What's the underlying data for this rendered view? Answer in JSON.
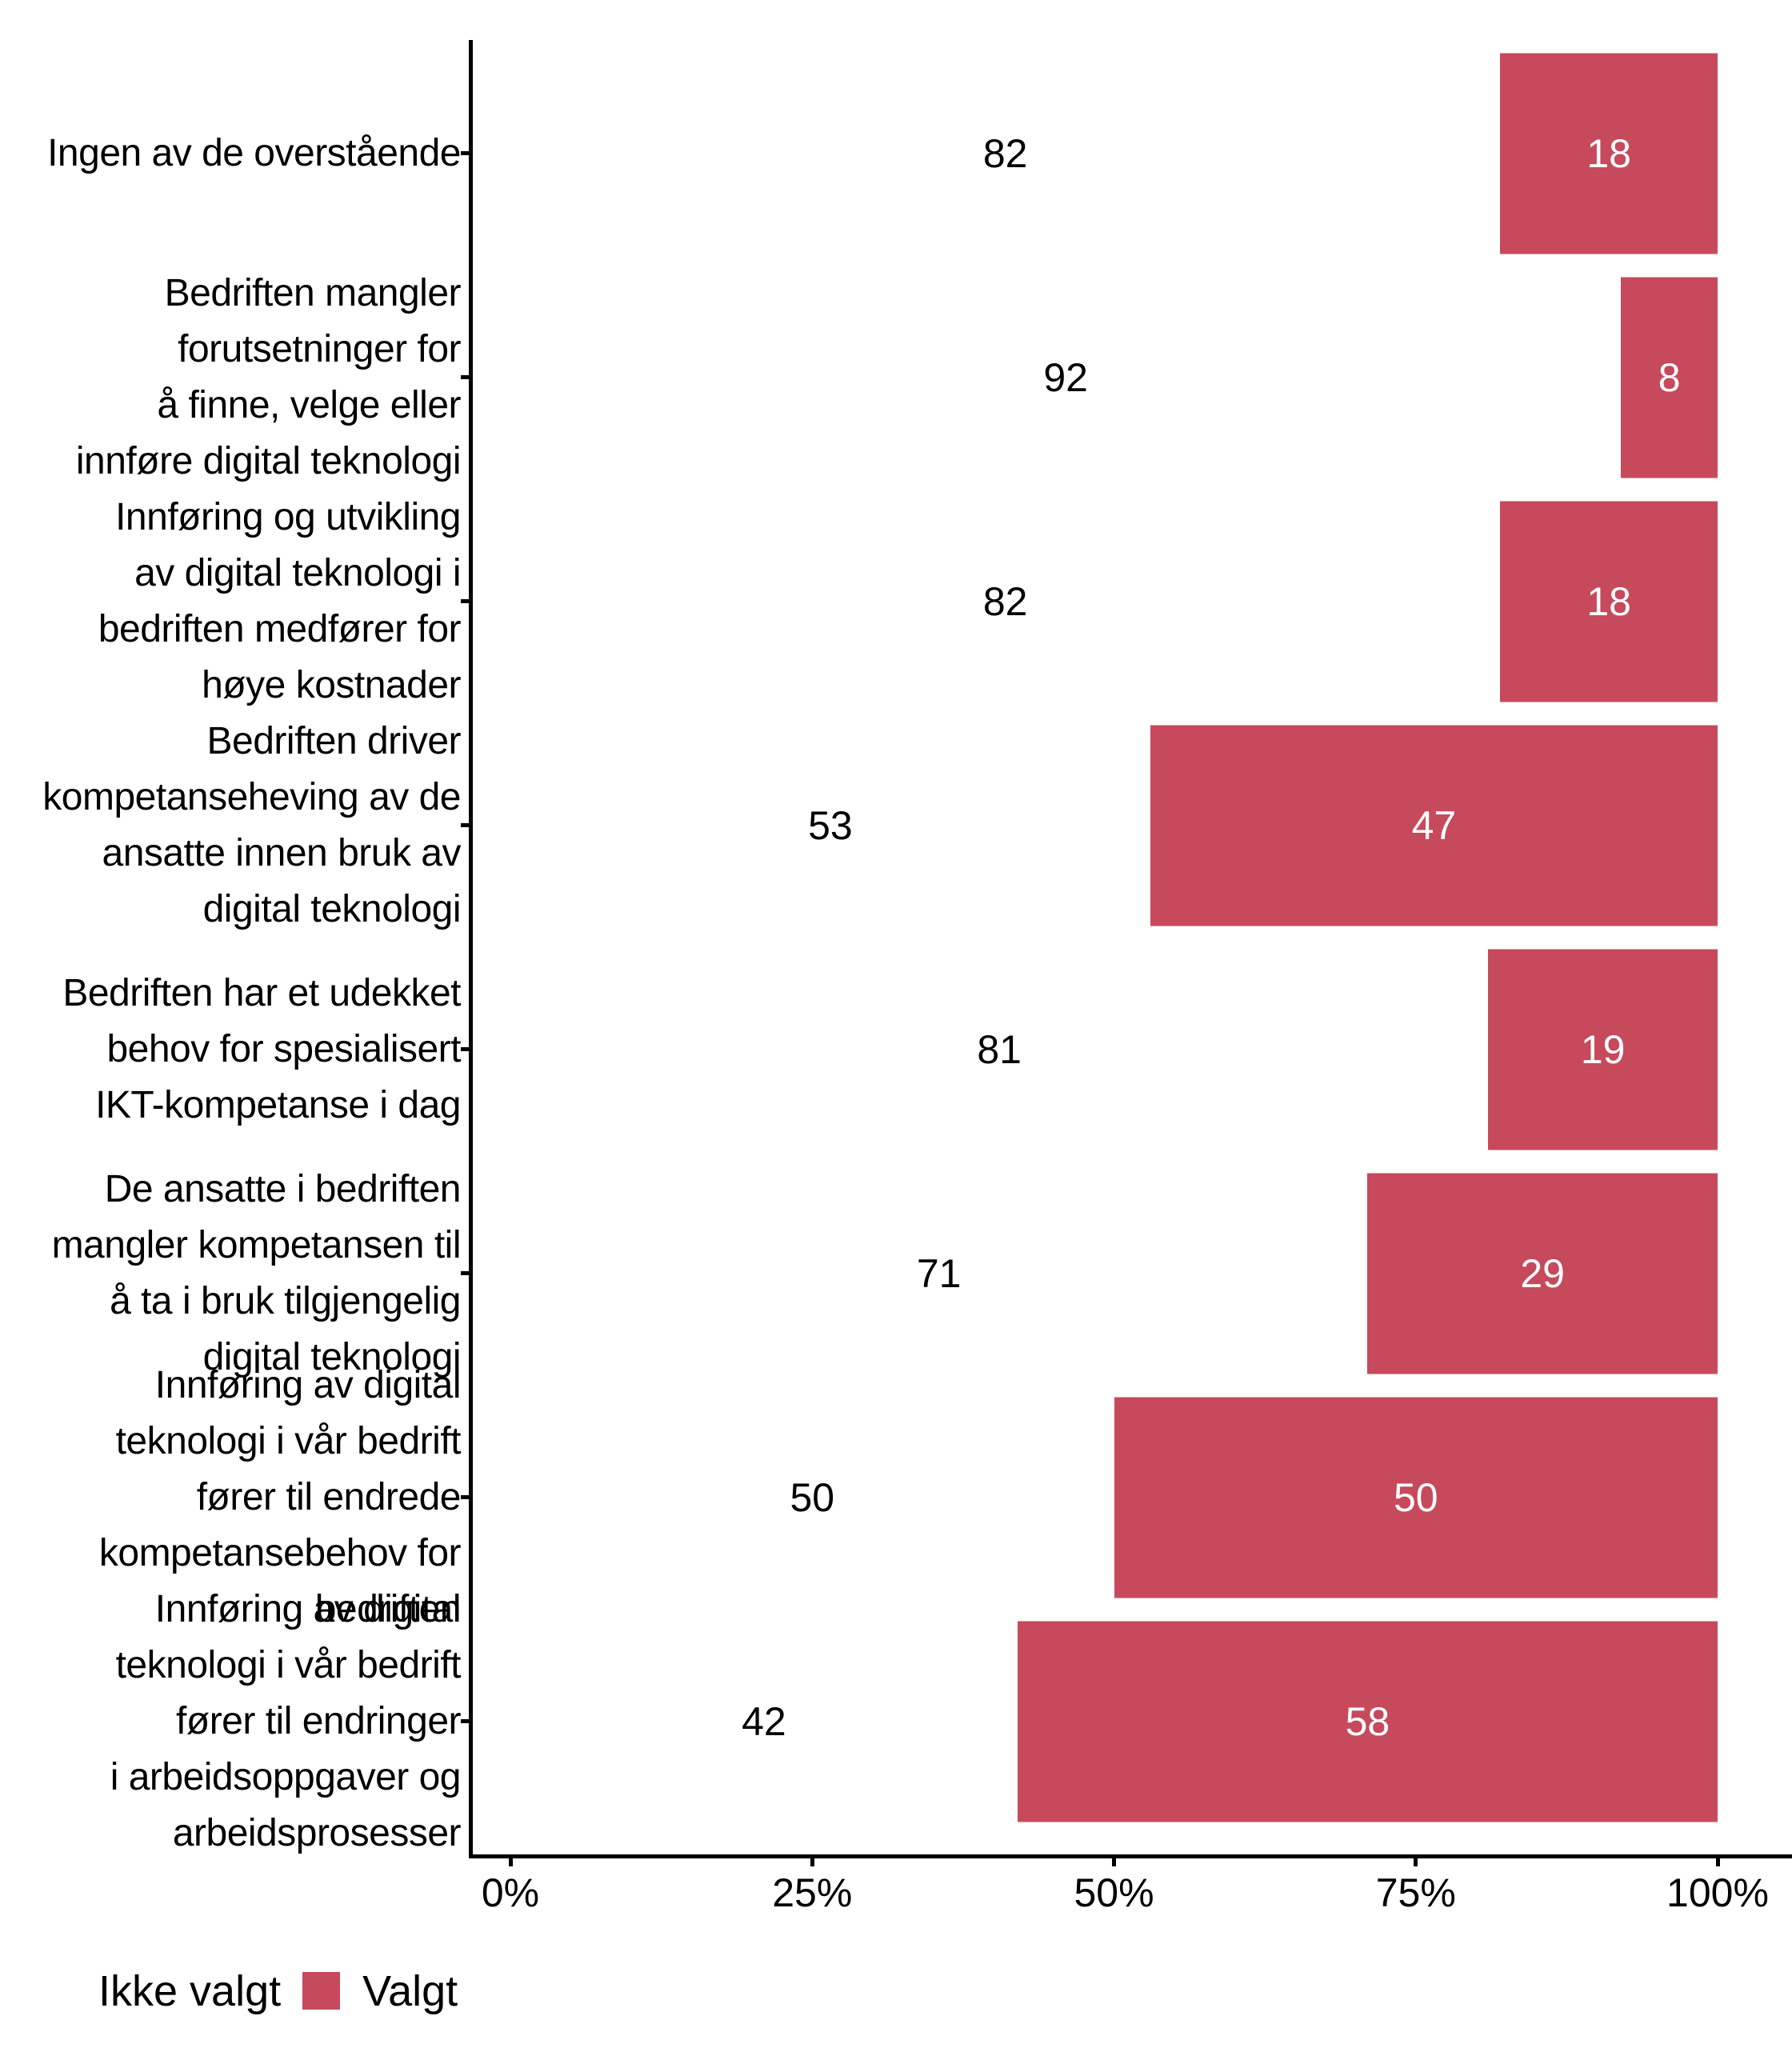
{
  "chart_data": {
    "type": "bar",
    "orientation": "horizontal",
    "stacked": true,
    "title": "",
    "xlabel": "",
    "ylabel": "",
    "grid": false,
    "background_color": "#ffffff",
    "axis_color": "#000000",
    "categories": [
      "Ingen av de overstående",
      "Bedriften mangler\nforutsetninger for\nå finne, velge eller\ninnføre digital teknologi",
      "Innføring og utvikling\nav digital teknologi i\nbedriften medfører for\nhøye kostnader",
      "Bedriften driver\nkompetanseheving av de\nansatte innen bruk av\ndigital teknologi",
      "Bedriften har et udekket\nbehov for spesialisert\nIKT-kompetanse i dag",
      "De ansatte i bedriften\nmangler kompetansen til\nå ta i bruk tilgjengelig\ndigital teknologi",
      "Innføring av digital\nteknologi i vår bedrift\nfører til endrede\nkompetansebehov for\nbedriften",
      "Innføring av digital\nteknologi i vår bedrift\nfører til endringer\ni arbeidsoppgaver og\narbeidsprosesser"
    ],
    "series": [
      {
        "name": "Ikke valgt",
        "color": "#ffffff",
        "label_color": "#000000",
        "values": [
          82,
          92,
          82,
          53,
          81,
          71,
          50,
          42
        ]
      },
      {
        "name": "Valgt",
        "color": "#c7495c",
        "label_color": "#ffffff",
        "values": [
          18,
          8,
          18,
          47,
          19,
          29,
          50,
          58
        ]
      }
    ],
    "x_axis": {
      "range": [
        0,
        100
      ],
      "tick_values": [
        0,
        25,
        50,
        75,
        100
      ],
      "tick_labels": [
        "0%",
        "25%",
        "50%",
        "75%",
        "100%"
      ]
    },
    "legend": {
      "position": "bottom-left",
      "items": [
        {
          "label": "Ikke valgt",
          "color": "#ffffff"
        },
        {
          "label": "Valgt",
          "color": "#c7495c"
        }
      ]
    }
  }
}
